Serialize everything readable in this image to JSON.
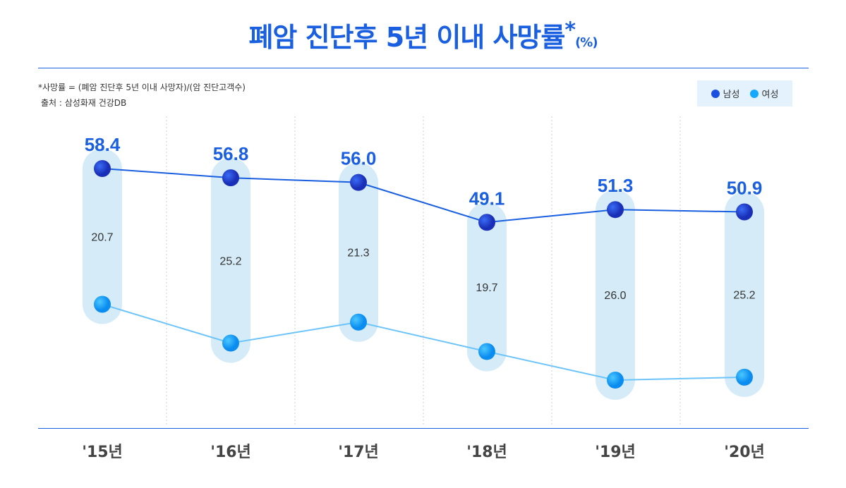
{
  "chart_data": {
    "type": "line",
    "title": "폐암 진단후 5년 이내 사망률",
    "title_mark": "*",
    "unit": "(%)",
    "note": "*사망률 = (폐암 진단후 5년 이내 사망자)/(암 진단고객수)",
    "source": "출처 : 삼성화재 건강DB",
    "categories": [
      "'15년",
      "'16년",
      "'17년",
      "'18년",
      "'19년",
      "'20년"
    ],
    "series": [
      {
        "name": "남성",
        "color": "#1a4fe0",
        "values": [
          58.4,
          56.8,
          56.0,
          49.1,
          51.3,
          50.9
        ]
      },
      {
        "name": "여성",
        "color": "#14a8ff",
        "labels": [
          "20.7",
          "25.2",
          "21.3",
          "19.7",
          "26.0",
          "25.2"
        ]
      }
    ],
    "legend": "top-right",
    "grid": "vertical dotted"
  }
}
